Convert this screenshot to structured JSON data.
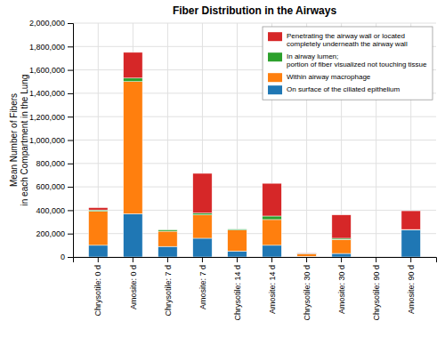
{
  "chart_data": {
    "type": "bar",
    "stacked": true,
    "title": "Fiber Distribution in the Airways",
    "ylabel": "Mean Number of Fibers\nin each Compartment in the Lung",
    "categories": [
      "Chrysotile: 0 d",
      "Amosite: 0 d",
      "Chrysotile: 7 d",
      "Amosite: 7 d",
      "Chrysotile: 14 d",
      "Amosite: 14 d",
      "Chrysotile: 30 d",
      "Amosite: 30 d",
      "Chrysotile: 90 d",
      "Amosite: 90 d"
    ],
    "series": [
      {
        "name": "On surface of the ciliated epithelium",
        "values": [
          100000,
          370000,
          90000,
          160000,
          50000,
          100000,
          5000,
          30000,
          0,
          230000
        ]
      },
      {
        "name": "Within airway macrophage",
        "values": [
          290000,
          1130000,
          130000,
          200000,
          180000,
          220000,
          20000,
          120000,
          0,
          0
        ]
      },
      {
        "name": "In airway lumen;\nportion of fiber visualized not touching tissue",
        "values": [
          12000,
          30000,
          12000,
          15000,
          8000,
          30000,
          4000,
          10000,
          0,
          5000
        ]
      },
      {
        "name": "Penetrating the airway wall or located\ncompletely underneath the airway wall",
        "values": [
          20000,
          220000,
          0,
          340000,
          0,
          280000,
          4000,
          200000,
          0,
          160000
        ]
      }
    ],
    "ylim": [
      0,
      2000000
    ],
    "yticks": [
      0,
      {
        "value": 200000,
        "label": "200,000"
      },
      {
        "value": 400000,
        "label": "400,000"
      },
      {
        "value": 600000,
        "label": "600,000"
      },
      {
        "value": 800000,
        "label": "800,000"
      },
      {
        "value": 1000000,
        "label": "1,000,000"
      },
      {
        "value": 1200000,
        "label": "1,200,000"
      },
      {
        "value": 1400000,
        "label": "1,400,000"
      },
      {
        "value": 1600000,
        "label": "1,600,000"
      },
      {
        "value": 1800000,
        "label": "1,800,000"
      },
      {
        "value": 2000000,
        "label": "2,000,000"
      }
    ],
    "grid": true,
    "legend": "top-right"
  }
}
